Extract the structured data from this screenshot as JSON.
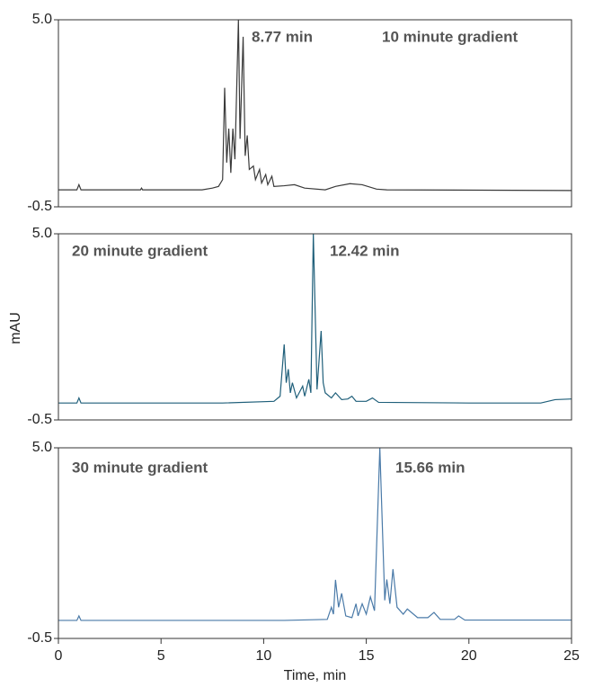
{
  "chart_data": [
    {
      "type": "line",
      "color": "#3a3a3a",
      "xlim": [
        0,
        25
      ],
      "ylim": [
        -0.5,
        5
      ],
      "yticks": [
        {
          "value": 5,
          "label": "5.0"
        },
        -0.5
      ],
      "peak_label": "8.77 min",
      "gradient_label": "10 minute gradient",
      "x": [
        0,
        0.9,
        1.0,
        1.1,
        4,
        4.05,
        4.1,
        7,
        7.5,
        7.8,
        8.0,
        8.1,
        8.2,
        8.3,
        8.4,
        8.5,
        8.6,
        8.77,
        8.85,
        9.0,
        9.1,
        9.2,
        9.3,
        9.5,
        9.6,
        9.8,
        9.9,
        10.1,
        10.2,
        10.4,
        10.5,
        11,
        11.5,
        12,
        13,
        13.5,
        14.2,
        14.8,
        15.5,
        16,
        25
      ],
      "values": [
        0,
        0,
        0.15,
        0,
        0,
        0.05,
        0,
        0,
        0.05,
        0.1,
        0.3,
        3.0,
        0.8,
        1.8,
        0.5,
        1.8,
        0.9,
        5.0,
        1.5,
        4.5,
        1.0,
        1.6,
        0.6,
        0.7,
        0.3,
        0.6,
        0.2,
        0.45,
        0.15,
        0.4,
        0.1,
        0.12,
        0.15,
        0.05,
        0,
        0.1,
        0.18,
        0.15,
        0.02,
        0,
        -0.02
      ]
    },
    {
      "type": "line",
      "color": "#1f5f7a",
      "xlim": [
        0,
        25
      ],
      "ylim": [
        -0.5,
        5
      ],
      "yticks": [
        {
          "value": 5,
          "label": "5.0"
        },
        -0.5
      ],
      "ylabel": "mAU",
      "gradient_label": "20 minute gradient",
      "peak_label": "12.42 min",
      "x": [
        0,
        0.9,
        1.0,
        1.1,
        8,
        10.5,
        10.8,
        11.0,
        11.1,
        11.2,
        11.3,
        11.4,
        11.6,
        11.9,
        12.0,
        12.2,
        12.3,
        12.42,
        12.6,
        12.8,
        12.9,
        13.0,
        13.3,
        13.5,
        13.8,
        14.1,
        14.3,
        14.5,
        15.0,
        15.3,
        15.6,
        20,
        23.5,
        24.2,
        25
      ],
      "values": [
        0,
        0,
        0.15,
        0,
        0,
        0.05,
        0.2,
        1.73,
        0.6,
        1.0,
        0.3,
        0.6,
        0.15,
        0.5,
        0.2,
        0.7,
        0.3,
        5.0,
        0.4,
        2.13,
        0.6,
        0.3,
        0.15,
        0.3,
        0.1,
        0.12,
        0.2,
        0.05,
        0.05,
        0.15,
        0.02,
        0,
        0,
        0.1,
        0.12
      ]
    },
    {
      "type": "line",
      "color": "#4a7aa8",
      "xlim": [
        0,
        25
      ],
      "ylim": [
        -0.5,
        5
      ],
      "yticks": [
        {
          "value": 5,
          "label": "5.0"
        },
        -0.5
      ],
      "gradient_label": "30 minute gradient",
      "peak_label": "15.66 min",
      "xlabel": "Time, min",
      "xticks": [
        0,
        5,
        10,
        15,
        20,
        25
      ],
      "x": [
        0,
        0.9,
        1.0,
        1.1,
        11,
        13.1,
        13.3,
        13.4,
        13.5,
        13.65,
        13.8,
        14.0,
        14.3,
        14.5,
        14.6,
        14.8,
        15.0,
        15.2,
        15.4,
        15.66,
        15.9,
        16.0,
        16.15,
        16.3,
        16.5,
        16.8,
        17.0,
        17.5,
        18.0,
        18.3,
        18.6,
        19.3,
        19.5,
        19.8,
        25
      ],
      "values": [
        0.02,
        0.02,
        0.15,
        0.02,
        0.02,
        0.05,
        0.4,
        0.2,
        1.19,
        0.4,
        0.8,
        0.15,
        0.1,
        0.5,
        0.15,
        0.5,
        0.2,
        0.7,
        0.3,
        5.0,
        0.6,
        1.2,
        0.5,
        1.5,
        0.4,
        0.2,
        0.35,
        0.1,
        0.1,
        0.25,
        0.05,
        0.05,
        0.15,
        0.03,
        0.03
      ]
    }
  ]
}
